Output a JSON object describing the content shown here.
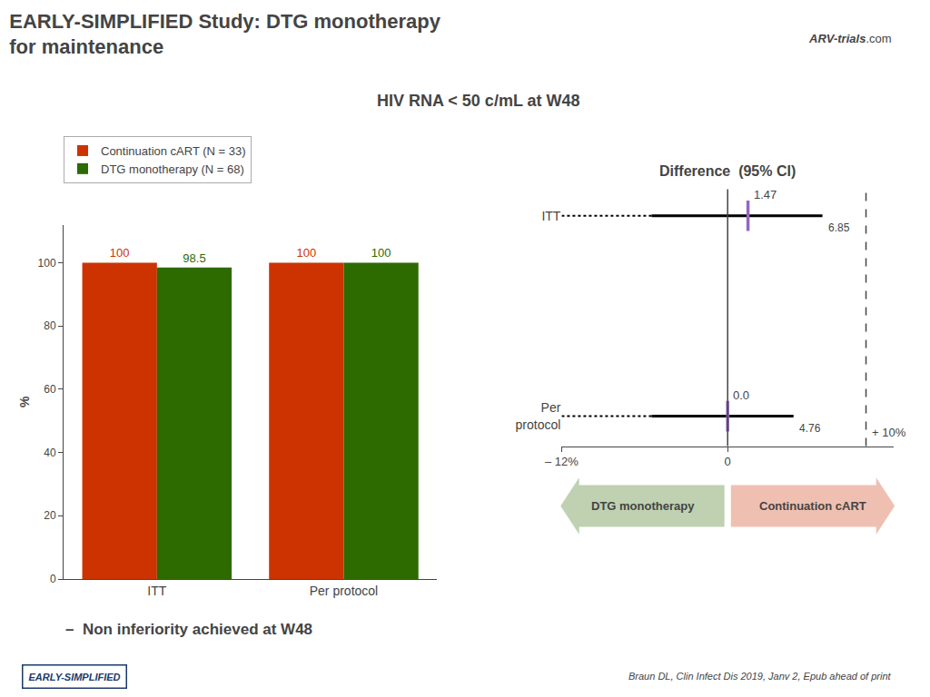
{
  "chart_data": [
    {
      "type": "bar",
      "title": "EARLY-SIMPLIFIED Study: DTG monotherapy\nfor maintenance",
      "subtitle": "HIV RNA < 50 c/mL at W48",
      "categories": [
        "ITT",
        "Per protocol"
      ],
      "series": [
        {
          "name": "Continuation cART (N = 33)",
          "color": "#cc3300",
          "values": [
            100,
            100
          ]
        },
        {
          "name": "DTG monotherapy (N = 68)",
          "color": "#2d6b00",
          "values": [
            98.5,
            100
          ]
        }
      ],
      "y_label": "%",
      "ylim": [
        0,
        112
      ],
      "yticks": [
        0,
        20,
        40,
        60,
        80,
        100
      ],
      "data_labels": true,
      "grid": false,
      "legend": "top left",
      "annotations": [
        {
          "text": "–  Non inferiority achieved at W48"
        },
        {
          "text": "Braun DL, Clin Infect Dis 2019, Janv 2, Epub ahead of print"
        },
        {
          "text": "EARLY-SIMPLIFIED",
          "color": "#1a3a6b"
        },
        {
          "text": "ARV-trials"
        },
        {
          "text": ".com"
        }
      ]
    },
    {
      "type": "forest",
      "title": "Difference  (95% CI)",
      "categories": [
        "ITT",
        "Per\nprotocol"
      ],
      "values": [
        1.47,
        0.0
      ],
      "value_labels": [
        "1.47",
        "0.0"
      ],
      "lower": [
        -5.5,
        -5.5
      ],
      "upper": [
        6.85,
        4.76
      ],
      "data_labels": true,
      "color": "#000000",
      "xlim": [
        -12,
        12
      ],
      "xticks": [
        {
          "value": -12,
          "label": "– 12%"
        },
        0
      ],
      "reference_lines": [
        {
          "value": 0,
          "line_style": "solid"
        },
        {
          "value": 10,
          "line_style": "dashed",
          "label": "+ 10%"
        }
      ],
      "arrows": [
        {
          "text": "DTG monotherapy",
          "color": "#2d6b00",
          "direction": "left"
        },
        {
          "text": "Continuation cART",
          "color": "#cc3300",
          "direction": "right"
        }
      ],
      "grid": false
    }
  ]
}
